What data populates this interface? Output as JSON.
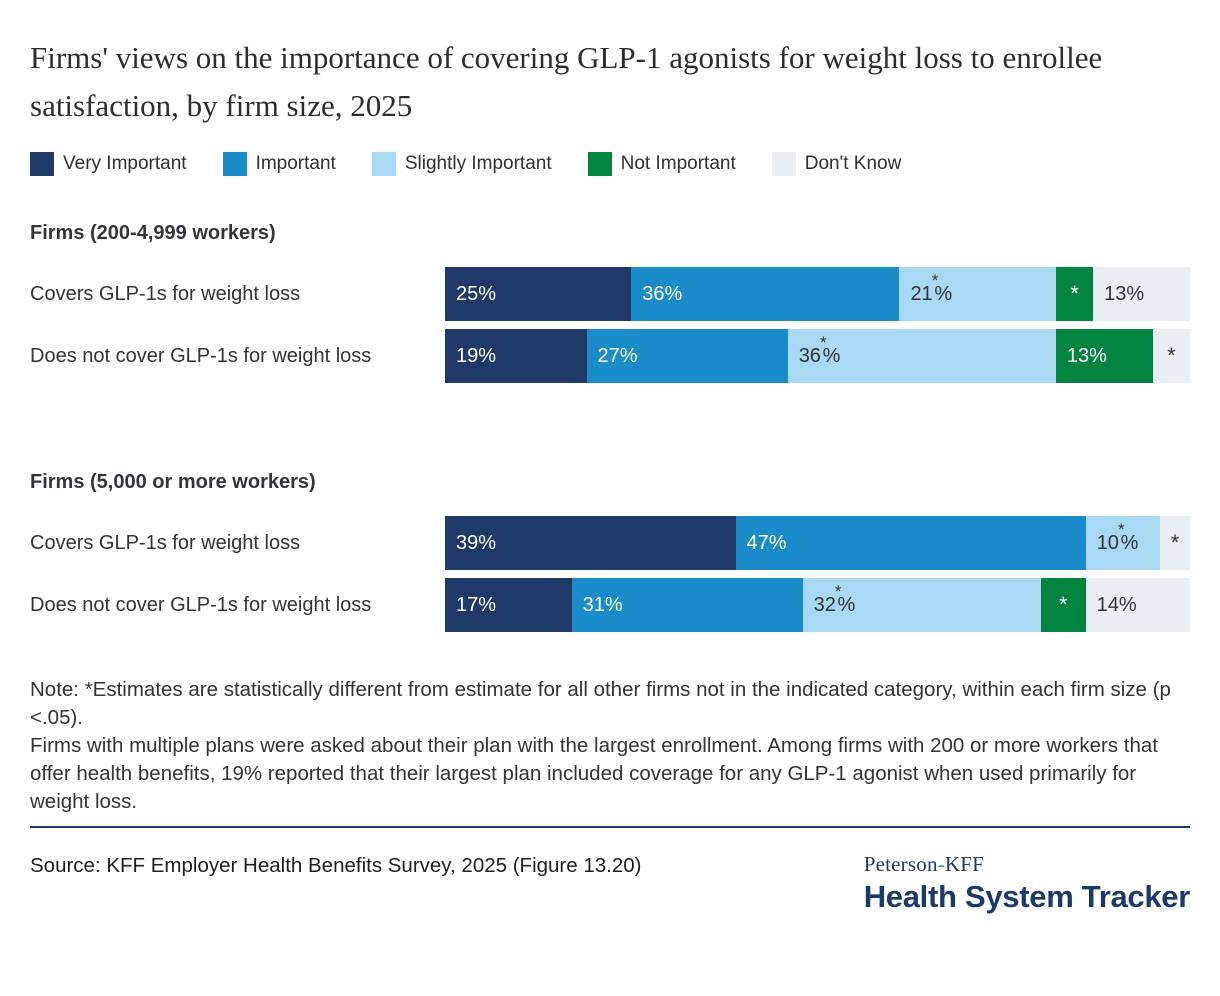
{
  "page": {
    "title": "Firms' views on the importance of covering GLP-1 agonists for weight loss to enrollee satisfaction, by firm size, 2025"
  },
  "legend": {
    "items": [
      {
        "name": "very-important",
        "label": "Very Important",
        "color": "#1f3a68"
      },
      {
        "name": "important",
        "label": "Important",
        "color": "#1b8cca"
      },
      {
        "name": "slightly-important",
        "label": "Slightly Important",
        "color": "#a9d9f2"
      },
      {
        "name": "not-important",
        "label": "Not Important",
        "color": "#00843f"
      },
      {
        "name": "dont-know",
        "label": "Don't Know",
        "color": "#e8eef1"
      }
    ]
  },
  "chart_data": {
    "type": "bar",
    "variant": "horizontal-stacked",
    "title": "Firms' views on the importance of covering GLP-1 agonists for weight loss to enrollee satisfaction, by firm size, 2025",
    "unit": "percent",
    "x_range": [
      0,
      100
    ],
    "grid": false,
    "legend_position": "top",
    "series_names": [
      "Very Important",
      "Important",
      "Slightly Important",
      "Not Important",
      "Don't Know"
    ],
    "series_colors": [
      "#1f3a68",
      "#1b8cca",
      "#a9d9f2",
      "#00843f",
      "#e8eef1"
    ],
    "series_text_colors": [
      "#ffffff",
      "#ffffff",
      "#333333",
      "#ffffff",
      "#333333"
    ],
    "groups": [
      {
        "label": "Firms (200-4,999 workers)",
        "rows": [
          {
            "label": "Covers GLP-1s for weight loss",
            "segments": [
              {
                "series": "Very Important",
                "value": 25,
                "label": "25%",
                "asterisk": false
              },
              {
                "series": "Important",
                "value": 36,
                "label": "36%",
                "asterisk": false
              },
              {
                "series": "Slightly Important",
                "value": 21,
                "label": "21%",
                "asterisk": true
              },
              {
                "series": "Not Important",
                "value": 5,
                "label": "",
                "asterisk": true
              },
              {
                "series": "Don't Know",
                "value": 13,
                "label": "13%",
                "asterisk": false
              }
            ]
          },
          {
            "label": "Does not cover GLP-1s for weight loss",
            "segments": [
              {
                "series": "Very Important",
                "value": 19,
                "label": "19%",
                "asterisk": false
              },
              {
                "series": "Important",
                "value": 27,
                "label": "27%",
                "asterisk": false
              },
              {
                "series": "Slightly Important",
                "value": 36,
                "label": "36%",
                "asterisk": true
              },
              {
                "series": "Not Important",
                "value": 13,
                "label": "13%",
                "asterisk": false
              },
              {
                "series": "Don't Know",
                "value": 5,
                "label": "",
                "asterisk": true
              }
            ]
          }
        ]
      },
      {
        "label": "Firms (5,000 or more workers)",
        "rows": [
          {
            "label": "Covers GLP-1s for weight loss",
            "segments": [
              {
                "series": "Very Important",
                "value": 39,
                "label": "39%",
                "asterisk": false
              },
              {
                "series": "Important",
                "value": 47,
                "label": "47%",
                "asterisk": false
              },
              {
                "series": "Slightly Important",
                "value": 10,
                "label": "10%",
                "asterisk": true
              },
              {
                "series": "Not Important",
                "value": 0,
                "label": "",
                "asterisk": false
              },
              {
                "series": "Don't Know",
                "value": 4,
                "label": "",
                "asterisk": true
              }
            ]
          },
          {
            "label": "Does not cover GLP-1s for weight loss",
            "segments": [
              {
                "series": "Very Important",
                "value": 17,
                "label": "17%",
                "asterisk": false
              },
              {
                "series": "Important",
                "value": 31,
                "label": "31%",
                "asterisk": false
              },
              {
                "series": "Slightly Important",
                "value": 32,
                "label": "32%",
                "asterisk": true
              },
              {
                "series": "Not Important",
                "value": 6,
                "label": "",
                "asterisk": true
              },
              {
                "series": "Don't Know",
                "value": 14,
                "label": "14%",
                "asterisk": false
              }
            ]
          }
        ]
      }
    ]
  },
  "note": {
    "line1": "Note: *Estimates are statistically different from estimate for all other firms not in the indicated category, within each firm size (p <.05).",
    "line2": "Firms with multiple plans were asked about their plan with the largest enrollment. Among firms with 200 or more workers that offer health benefits, 19% reported that their largest plan included coverage for any GLP-1 agonist when used primarily for weight loss."
  },
  "footer": {
    "source": "Source: KFF Employer Health Benefits Survey, 2025 (Figure 13.20)",
    "logo": {
      "peterson": "Peterson",
      "hyphen": "-",
      "kff": "KFF",
      "tracker": "Health System Tracker"
    }
  }
}
